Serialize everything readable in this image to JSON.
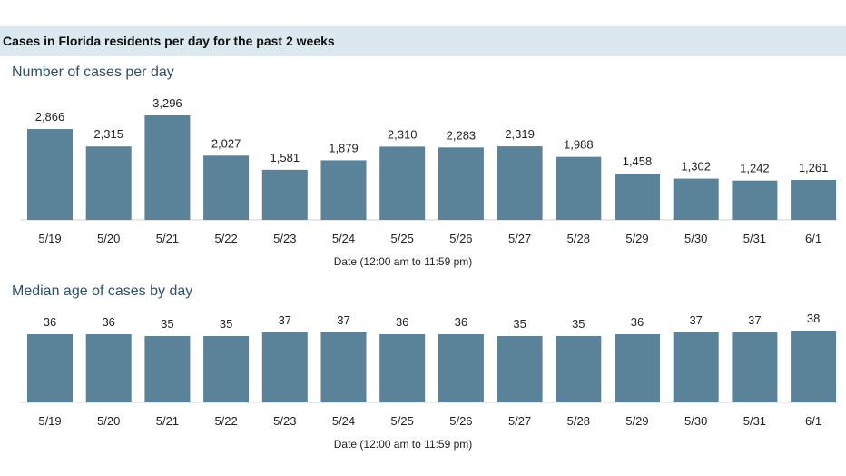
{
  "banner": {
    "title": "Cases in Florida residents per day for the past 2 weeks"
  },
  "chart_data": [
    {
      "type": "bar",
      "title": "Number of cases per day",
      "xlabel": "Date (12:00 am to 11:59 pm)",
      "ylabel": "",
      "categories": [
        "5/19",
        "5/20",
        "5/21",
        "5/22",
        "5/23",
        "5/24",
        "5/25",
        "5/26",
        "5/27",
        "5/28",
        "5/29",
        "5/30",
        "5/31",
        "6/1"
      ],
      "values": [
        2866,
        2315,
        3296,
        2027,
        1581,
        1879,
        2310,
        2283,
        2319,
        1988,
        1458,
        1302,
        1242,
        1261
      ],
      "value_labels": [
        "2,866",
        "2,315",
        "3,296",
        "2,027",
        "1,581",
        "1,879",
        "2,310",
        "2,283",
        "2,319",
        "1,988",
        "1,458",
        "1,302",
        "1,242",
        "1,261"
      ],
      "color": "#5a8299",
      "grid": false,
      "ylim": [
        0,
        3296
      ]
    },
    {
      "type": "bar",
      "title": "Median age of cases by day",
      "xlabel": "Date (12:00 am to 11:59 pm)",
      "ylabel": "",
      "categories": [
        "5/19",
        "5/20",
        "5/21",
        "5/22",
        "5/23",
        "5/24",
        "5/25",
        "5/26",
        "5/27",
        "5/28",
        "5/29",
        "5/30",
        "5/31",
        "6/1"
      ],
      "values": [
        36,
        36,
        35,
        35,
        37,
        37,
        36,
        36,
        35,
        35,
        36,
        37,
        37,
        38
      ],
      "value_labels": [
        "36",
        "36",
        "35",
        "35",
        "37",
        "37",
        "36",
        "36",
        "35",
        "35",
        "36",
        "37",
        "37",
        "38"
      ],
      "color": "#5a8299",
      "grid": false,
      "ylim": [
        0,
        38
      ]
    }
  ]
}
